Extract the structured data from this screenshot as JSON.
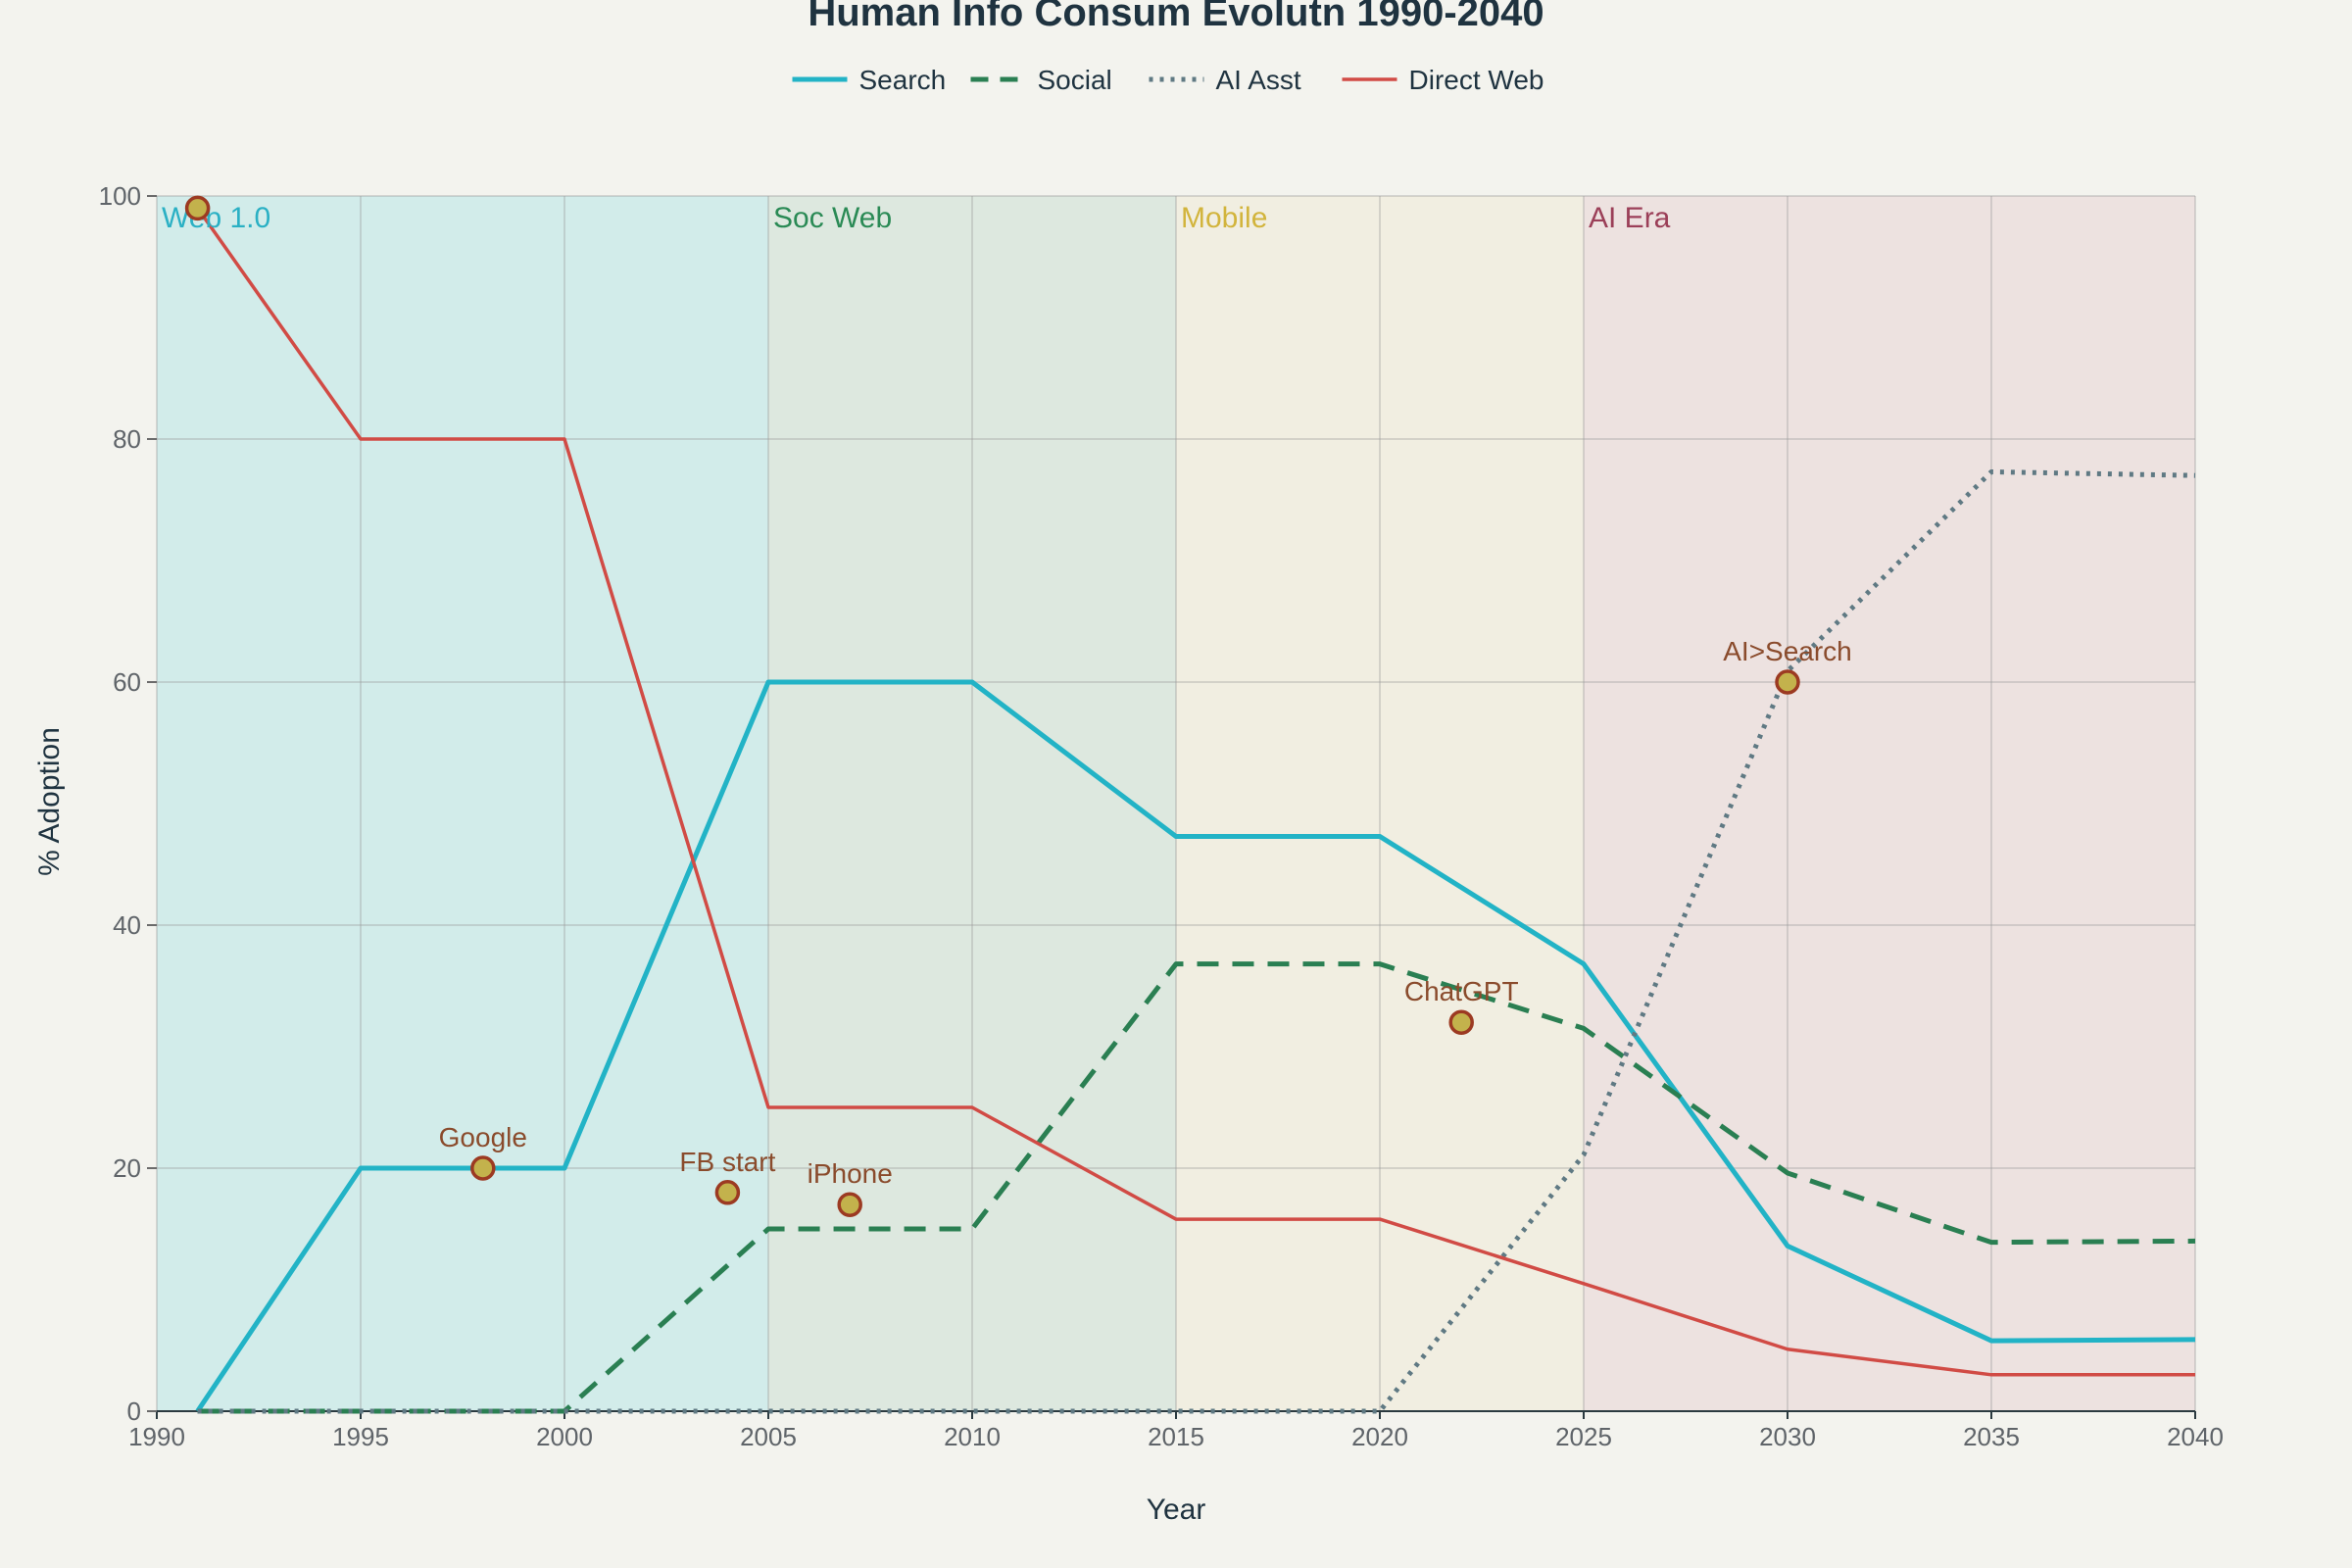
{
  "chart_data": {
    "type": "line",
    "title": "Human Info Consum Evolutn 1990-2040",
    "xlabel": "Year",
    "ylabel": "% Adoption",
    "xlim": [
      1990,
      2040
    ],
    "ylim": [
      0,
      100
    ],
    "x_ticks": [
      1990,
      1995,
      2000,
      2005,
      2010,
      2015,
      2020,
      2025,
      2030,
      2035,
      2040
    ],
    "y_ticks": [
      0,
      20,
      40,
      60,
      80,
      100
    ],
    "grid": true,
    "legend_position": "top-center",
    "x": [
      1991,
      1995,
      2000,
      2005,
      2010,
      2015,
      2020,
      2025,
      2030,
      2035,
      2040
    ],
    "series": [
      {
        "name": "Search",
        "color": "#22b3c6",
        "style": "solid",
        "width": 5,
        "values": [
          0,
          20,
          20,
          60,
          60,
          47.3,
          47.3,
          36.8,
          13.6,
          5.8,
          5.9
        ]
      },
      {
        "name": "Social",
        "color": "#2a7f52",
        "style": "dashed",
        "width": 5,
        "values": [
          0,
          0,
          0,
          15,
          15,
          36.8,
          36.8,
          31.5,
          19.6,
          13.9,
          14
        ]
      },
      {
        "name": "AI Asst",
        "color": "#5f7983",
        "style": "dotted",
        "width": 5,
        "values": [
          0,
          0,
          0,
          0,
          0,
          0,
          0,
          21.1,
          60.9,
          77.3,
          77
        ]
      },
      {
        "name": "Direct Web",
        "color": "#d14b45",
        "style": "solid",
        "width": 3.5,
        "values": [
          99,
          80,
          80,
          25,
          25,
          15.8,
          15.8,
          10.5,
          5.1,
          3,
          3
        ]
      }
    ],
    "eras": [
      {
        "label": "Web 1.0",
        "start": 1990,
        "end": 2005,
        "fill": "#d2ecea",
        "text_color": "#2ab0c4"
      },
      {
        "label": "Soc Web",
        "start": 2005,
        "end": 2015,
        "fill": "#dde8df",
        "text_color": "#2a8a55"
      },
      {
        "label": "Mobile",
        "start": 2015,
        "end": 2025,
        "fill": "#f1eee1",
        "text_color": "#d2b43c"
      },
      {
        "label": "AI Era",
        "start": 2025,
        "end": 2040,
        "fill": "#ede2e0",
        "text_color": "#9b3f58"
      }
    ],
    "annotations": [
      {
        "label": "",
        "x": 1991,
        "y": 99
      },
      {
        "label": "Google",
        "x": 1998,
        "y": 20
      },
      {
        "label": "FB start",
        "x": 2004,
        "y": 18
      },
      {
        "label": "iPhone",
        "x": 2007,
        "y": 17
      },
      {
        "label": "ChatGPT",
        "x": 2022,
        "y": 32
      },
      {
        "label": "AI>Search",
        "x": 2030,
        "y": 60
      }
    ]
  }
}
